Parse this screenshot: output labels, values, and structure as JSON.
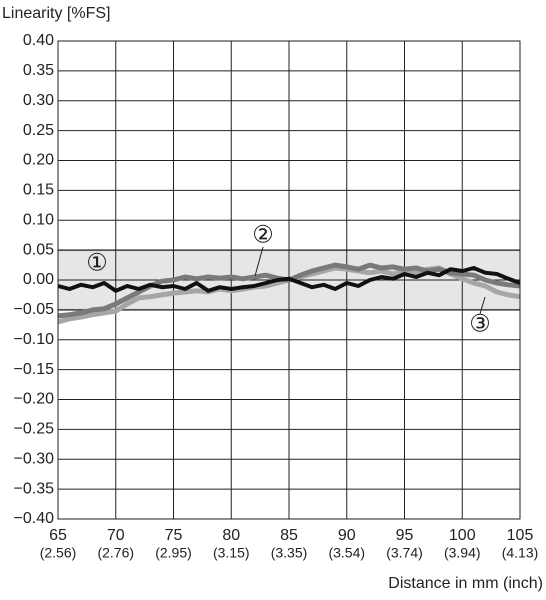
{
  "chart_data": {
    "type": "line",
    "ylabel": "Linearity [%FS]",
    "xlabel": "Distance in mm (inch)",
    "x": [
      65,
      66,
      67,
      68,
      69,
      70,
      71,
      72,
      73,
      74,
      75,
      76,
      77,
      78,
      79,
      80,
      81,
      82,
      83,
      84,
      85,
      86,
      87,
      88,
      89,
      90,
      91,
      92,
      93,
      94,
      95,
      96,
      97,
      98,
      99,
      100,
      101,
      102,
      103,
      104,
      105
    ],
    "series": [
      {
        "name": "①",
        "color": "#111111",
        "values": [
          -0.01,
          -0.015,
          -0.008,
          -0.012,
          -0.005,
          -0.018,
          -0.01,
          -0.015,
          -0.008,
          -0.012,
          -0.01,
          -0.015,
          -0.005,
          -0.018,
          -0.012,
          -0.015,
          -0.012,
          -0.01,
          -0.005,
          0.0,
          0.002,
          -0.005,
          -0.012,
          -0.008,
          -0.015,
          -0.005,
          -0.01,
          0.0,
          0.005,
          0.002,
          0.01,
          0.005,
          0.012,
          0.008,
          0.018,
          0.015,
          0.02,
          0.012,
          0.01,
          0.002,
          -0.005
        ]
      },
      {
        "name": "②",
        "color": "#7a7a7a",
        "values": [
          -0.06,
          -0.058,
          -0.055,
          -0.05,
          -0.048,
          -0.04,
          -0.03,
          -0.02,
          -0.01,
          -0.002,
          0.0,
          0.005,
          0.002,
          0.005,
          0.003,
          0.005,
          0.002,
          0.005,
          0.008,
          0.003,
          0.0,
          0.008,
          0.015,
          0.02,
          0.025,
          0.022,
          0.018,
          0.025,
          0.02,
          0.022,
          0.018,
          0.02,
          0.015,
          0.018,
          0.012,
          0.01,
          0.008,
          0.0,
          -0.005,
          -0.008,
          -0.01
        ]
      },
      {
        "name": "③",
        "color": "#a6a6a6",
        "values": [
          -0.07,
          -0.065,
          -0.062,
          -0.058,
          -0.055,
          -0.052,
          -0.04,
          -0.03,
          -0.028,
          -0.025,
          -0.022,
          -0.02,
          -0.018,
          -0.02,
          -0.015,
          -0.018,
          -0.015,
          -0.012,
          -0.01,
          -0.005,
          0.0,
          0.005,
          0.01,
          0.015,
          0.02,
          0.018,
          0.015,
          0.012,
          0.015,
          0.01,
          0.015,
          0.012,
          0.018,
          0.02,
          0.01,
          0.002,
          -0.005,
          -0.01,
          -0.02,
          -0.025,
          -0.028
        ]
      }
    ],
    "band": [
      -0.05,
      0.05
    ],
    "band_color": "#e6e6e6",
    "xlim": [
      65,
      105
    ],
    "xticks": [
      65,
      70,
      75,
      80,
      85,
      90,
      95,
      100,
      105
    ],
    "xticks_inch": [
      "(2.56)",
      "(2.76)",
      "(2.95)",
      "(3.15)",
      "(3.35)",
      "(3.54)",
      "(3.74)",
      "(3.94)",
      "(4.13)"
    ],
    "ylim": [
      -0.4,
      0.4
    ],
    "yticks": [
      {
        "value": 0.4,
        "label": "0.40"
      },
      {
        "value": 0.35,
        "label": "0.35"
      },
      {
        "value": 0.3,
        "label": "0.30"
      },
      {
        "value": 0.25,
        "label": "0.25"
      },
      {
        "value": 0.2,
        "label": "0.20"
      },
      {
        "value": 0.15,
        "label": "0.15"
      },
      {
        "value": 0.1,
        "label": "0.10"
      },
      {
        "value": 0.05,
        "label": "0.05"
      },
      {
        "value": 0,
        "label": "0.00"
      },
      {
        "value": -0.05,
        "label": "−0.05"
      },
      {
        "value": -0.1,
        "label": "−0.10"
      },
      {
        "value": -0.15,
        "label": "−0.15"
      },
      {
        "value": -0.2,
        "label": "−0.20"
      },
      {
        "value": -0.25,
        "label": "−0.25"
      },
      {
        "value": -0.3,
        "label": "−0.30"
      },
      {
        "value": -0.35,
        "label": "−0.35"
      },
      {
        "value": -0.4,
        "label": "−0.40"
      }
    ],
    "grid": true
  }
}
